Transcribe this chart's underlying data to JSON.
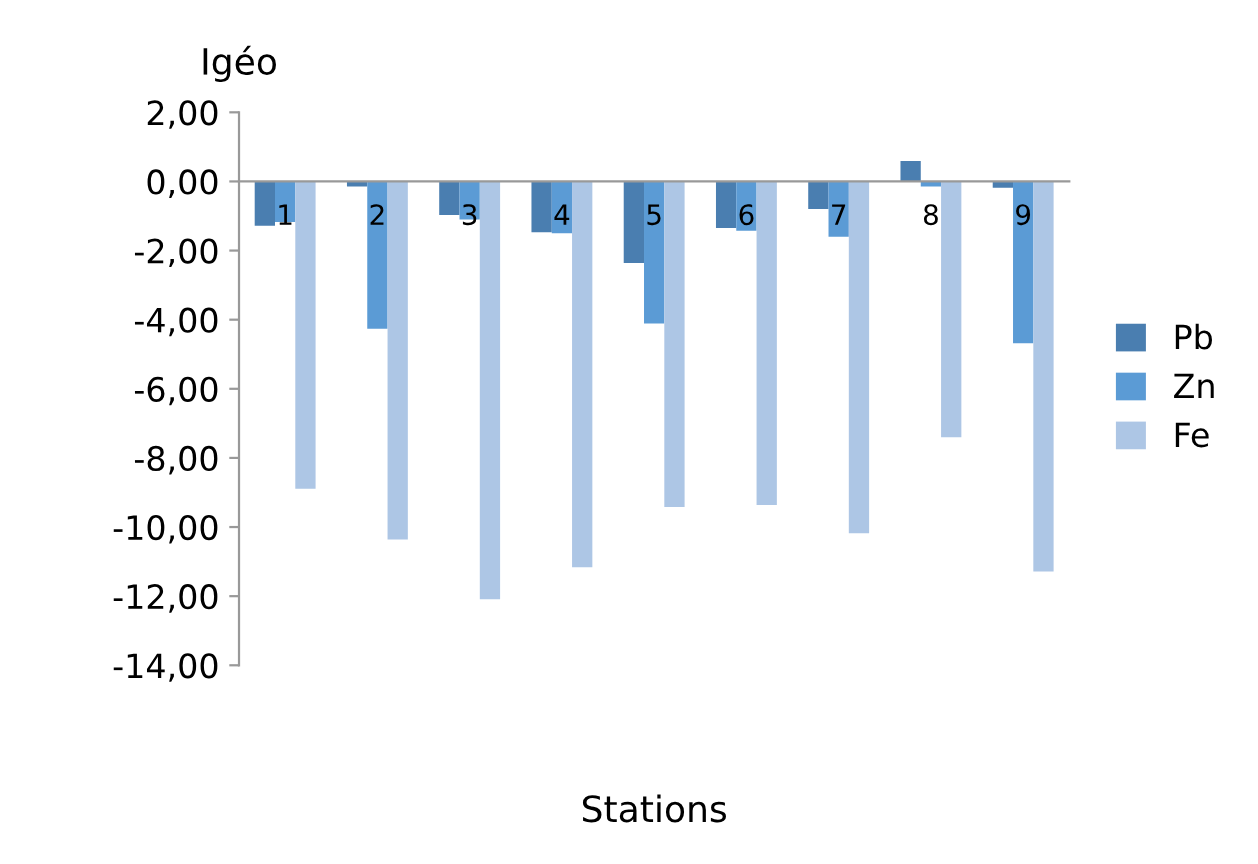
{
  "chart_data": {
    "type": "bar",
    "ylabel": "Igéo",
    "xlabel": "Stations",
    "categories": [
      "1",
      "2",
      "3",
      "4",
      "5",
      "6",
      "7",
      "8",
      "9"
    ],
    "series": [
      {
        "name": "Pb",
        "color": "#4a7eb0",
        "values": [
          -1.28,
          -0.15,
          -0.97,
          -1.47,
          -2.36,
          -1.35,
          -0.8,
          0.59,
          -0.18
        ]
      },
      {
        "name": "Zn",
        "color": "#5b9bd5",
        "values": [
          -1.17,
          -4.26,
          -1.1,
          -1.5,
          -4.11,
          -1.43,
          -1.6,
          -0.15,
          -4.68
        ]
      },
      {
        "name": "Fe",
        "color": "#adc6e5",
        "values": [
          -8.89,
          -10.36,
          -12.09,
          -11.16,
          -9.42,
          -9.36,
          -10.18,
          -7.4,
          -11.29
        ]
      }
    ],
    "ylim": [
      -14,
      2
    ],
    "yticks": [
      {
        "value": 2,
        "label": "2,00"
      },
      {
        "value": 0,
        "label": "0,00"
      },
      {
        "value": -2,
        "label": "-2,00"
      },
      {
        "value": -4,
        "label": "-4,00"
      },
      {
        "value": -6,
        "label": "-6,00"
      },
      {
        "value": -8,
        "label": "-8,00"
      },
      {
        "value": -10,
        "label": "-10,00"
      },
      {
        "value": -12,
        "label": "-12,00"
      },
      {
        "value": -14,
        "label": "-14,00"
      }
    ],
    "grid": false,
    "legend": "right"
  }
}
